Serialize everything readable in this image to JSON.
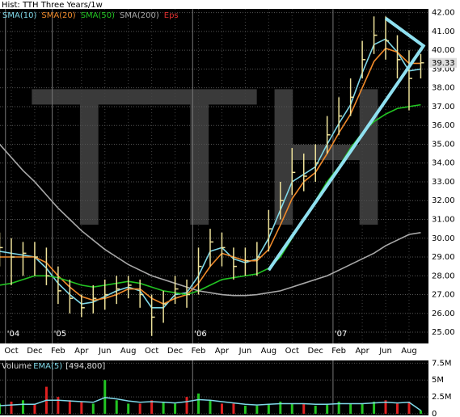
{
  "chart_data": {
    "type": "stock",
    "title": "Hist: TTH Three Years/1w",
    "watermark": "TTH",
    "categories": [
      null,
      "Oct",
      null,
      "Dec",
      null,
      "Feb",
      null,
      "Apr",
      null,
      "Jun",
      null,
      "Aug",
      null,
      "Oct",
      null,
      "Dec",
      null,
      "Feb",
      null,
      "Apr",
      null,
      "Jun",
      null,
      "Aug",
      null,
      "Oct",
      null,
      "Dec",
      null,
      "Feb",
      null,
      "Apr",
      null,
      "Jun",
      null,
      "Aug",
      null
    ],
    "xticks": [
      {
        "value": 0.5,
        "label": "'04"
      },
      {
        "value": 4.5,
        "label": "'05"
      },
      {
        "value": 16.5,
        "label": "'06"
      },
      {
        "value": 28.5,
        "label": "'07"
      }
    ],
    "price_color": "#efe39a",
    "high": [
      30.3,
      30.0,
      29.8,
      29.8,
      29.5,
      28.5,
      27.8,
      27.0,
      27.5,
      27.8,
      28.0,
      28.0,
      27.8,
      27.0,
      27.2,
      28.0,
      27.8,
      29.5,
      30.5,
      30.3,
      29.5,
      29.5,
      29.8,
      31.5,
      33.0,
      34.8,
      34.5,
      35.0,
      36.5,
      37.5,
      38.5,
      40.5,
      41.8,
      41.8,
      40.8,
      40.0,
      39.8
    ],
    "low": [
      28.5,
      27.5,
      28.0,
      28.0,
      27.5,
      26.5,
      26.0,
      25.8,
      26.0,
      26.2,
      26.5,
      26.8,
      26.3,
      24.8,
      25.5,
      26.5,
      26.3,
      27.0,
      28.5,
      28.5,
      27.8,
      28.0,
      28.0,
      29.3,
      31.0,
      32.3,
      32.5,
      33.0,
      34.5,
      35.5,
      36.5,
      38.5,
      39.8,
      39.5,
      38.5,
      36.8,
      38.5
    ],
    "close": [
      29.5,
      29.0,
      29.2,
      29.0,
      28.0,
      27.2,
      26.8,
      26.3,
      26.8,
      27.0,
      27.3,
      27.5,
      27.0,
      25.8,
      26.5,
      27.3,
      27.0,
      28.5,
      29.8,
      29.5,
      28.5,
      28.8,
      29.0,
      30.5,
      32.0,
      33.5,
      33.3,
      34.0,
      35.5,
      36.5,
      37.5,
      39.5,
      40.8,
      40.5,
      39.5,
      38.5,
      39.33
    ],
    "last_price": {
      "value": 39.33,
      "label": "39.33"
    },
    "series": [
      {
        "name": "SMA(10)",
        "color": "#7fd8e8",
        "values": [
          29.3,
          29.2,
          29.1,
          29.0,
          28.4,
          27.6,
          27.0,
          26.5,
          26.6,
          26.9,
          27.2,
          27.4,
          27.2,
          26.3,
          26.3,
          27.0,
          27.1,
          28.0,
          29.3,
          29.5,
          28.9,
          28.7,
          28.9,
          30.0,
          31.5,
          33.0,
          33.4,
          33.8,
          35.0,
          36.1,
          37.1,
          38.8,
          40.3,
          40.6,
          39.9,
          38.9,
          39.0
        ]
      },
      {
        "name": "SMA(20)",
        "color": "#f08a2a",
        "values": [
          29.0,
          29.0,
          29.0,
          29.0,
          28.7,
          28.0,
          27.4,
          26.9,
          26.7,
          26.8,
          27.0,
          27.3,
          27.3,
          26.8,
          26.5,
          26.8,
          27.0,
          27.6,
          28.5,
          29.2,
          29.0,
          28.8,
          28.8,
          29.4,
          30.7,
          32.1,
          33.0,
          33.5,
          34.5,
          35.6,
          36.6,
          38.0,
          39.4,
          40.1,
          39.9,
          39.3,
          39.3
        ]
      },
      {
        "name": "SMA(50)",
        "color": "#22c422",
        "values": [
          27.5,
          27.6,
          27.8,
          28.0,
          28.0,
          27.9,
          27.7,
          27.5,
          27.4,
          27.5,
          27.6,
          27.7,
          27.6,
          27.4,
          27.2,
          27.1,
          27.0,
          27.2,
          27.5,
          27.8,
          27.9,
          28.0,
          28.1,
          28.4,
          29.0,
          30.0,
          31.0,
          32.0,
          33.0,
          33.8,
          34.8,
          35.6,
          36.2,
          36.6,
          36.9,
          37.0,
          37.1
        ]
      },
      {
        "name": "SMA(200)",
        "color": "#a8a8a8",
        "values": [
          35.0,
          34.3,
          33.6,
          33.0,
          32.3,
          31.6,
          31.0,
          30.4,
          29.9,
          29.4,
          29.0,
          28.6,
          28.3,
          28.0,
          27.8,
          27.6,
          27.4,
          27.2,
          27.1,
          27.0,
          26.95,
          26.95,
          27.0,
          27.1,
          27.2,
          27.4,
          27.6,
          27.8,
          28.0,
          28.3,
          28.6,
          28.9,
          29.2,
          29.6,
          29.9,
          30.2,
          30.3
        ]
      }
    ],
    "eps_label": {
      "text": "Eps",
      "color": "#e03030"
    },
    "trendlines": {
      "color": "#8fe0f0",
      "lines": [
        [
          23,
          28.3,
          36.3,
          40.3
        ],
        [
          33.0,
          41.7,
          36.3,
          40.2
        ]
      ]
    },
    "ylim": [
      24.4,
      42.2
    ],
    "yticks": [
      {
        "value": 25,
        "label": "25.00"
      },
      {
        "value": 26,
        "label": "26.00"
      },
      {
        "value": 27,
        "label": "27.00"
      },
      {
        "value": 28,
        "label": "28.00"
      },
      {
        "value": 29,
        "label": "29.00"
      },
      {
        "value": 30,
        "label": "30.00"
      },
      {
        "value": 31,
        "label": "31.00"
      },
      {
        "value": 32,
        "label": "32.00"
      },
      {
        "value": 33,
        "label": "33.00"
      },
      {
        "value": 34,
        "label": "34.00"
      },
      {
        "value": 35,
        "label": "35.00"
      },
      {
        "value": 36,
        "label": "36.00"
      },
      {
        "value": 37,
        "label": "37.00"
      },
      {
        "value": 38,
        "label": "38.00"
      },
      {
        "value": 39,
        "label": "39.00"
      },
      {
        "value": 40,
        "label": "40.00"
      },
      {
        "value": 41,
        "label": "41.00"
      },
      {
        "value": 42,
        "label": "42.00"
      }
    ],
    "volume": {
      "label": "Volume",
      "ema_name": "EMA(5)",
      "ema_color": "#7fd8e8",
      "ema_last": {
        "value": 494800,
        "label": "[494,800]"
      },
      "up_color": "#22c422",
      "down_color": "#e02020",
      "values": [
        1500000,
        1800000,
        2000000,
        1500000,
        4000000,
        2500000,
        2000000,
        1800000,
        1500000,
        5000000,
        2000000,
        1500000,
        1500000,
        2000000,
        1800000,
        1500000,
        2500000,
        3000000,
        2000000,
        1500000,
        1500000,
        1200000,
        1200000,
        1500000,
        1800000,
        1500000,
        1500000,
        1200000,
        1500000,
        1800000,
        1500000,
        1500000,
        1800000,
        2000000,
        1500000,
        1800000,
        500000
      ],
      "ema": [
        1200000,
        1300000,
        1400000,
        1400000,
        2000000,
        2000000,
        1900000,
        1800000,
        1700000,
        2400000,
        2200000,
        1900000,
        1700000,
        1800000,
        1700000,
        1600000,
        1800000,
        2100000,
        2000000,
        1800000,
        1600000,
        1400000,
        1300000,
        1400000,
        1500000,
        1500000,
        1500000,
        1400000,
        1400000,
        1500000,
        1500000,
        1500000,
        1600000,
        1700000,
        1600000,
        1700000,
        494800
      ],
      "ylim": [
        0,
        7900000
      ],
      "yticks": [
        {
          "value": 0,
          "label": "0"
        },
        {
          "value": 2500000,
          "label": "2.5M"
        },
        {
          "value": 5000000,
          "label": "5M"
        },
        {
          "value": 7500000,
          "label": "7.5M"
        }
      ]
    }
  }
}
